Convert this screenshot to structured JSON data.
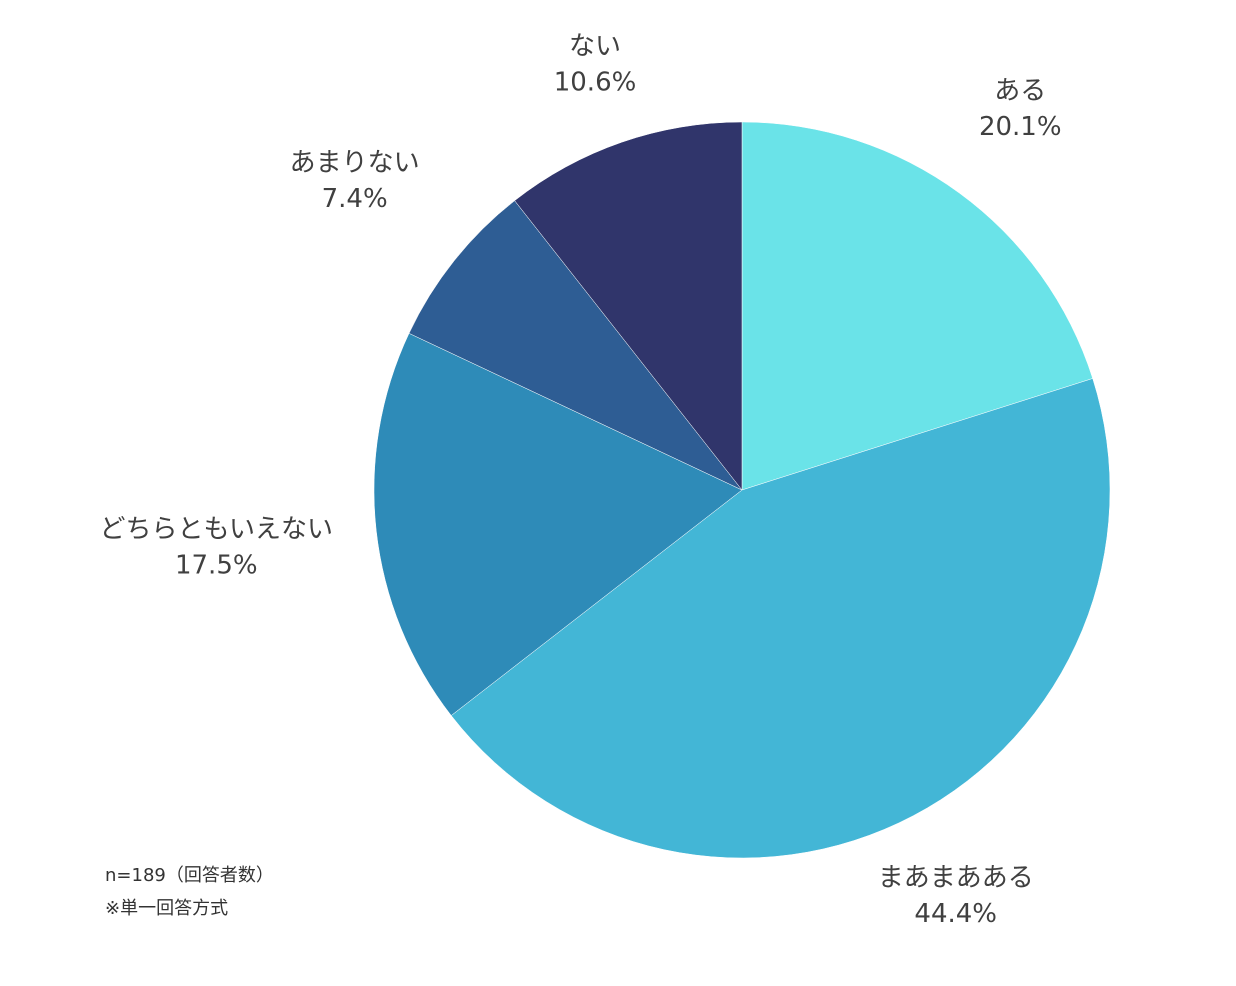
{
  "chart_data": {
    "type": "pie",
    "categories": [
      "ある",
      "まあまあある",
      "どちらともいえない",
      "あまりない",
      "ない"
    ],
    "values": [
      20.1,
      44.4,
      17.5,
      7.4,
      10.6
    ],
    "value_labels": [
      "20.1%",
      "44.4%",
      "17.5%",
      "7.4%",
      "10.6%"
    ],
    "colors": [
      "#6ae3e8",
      "#43b6d6",
      "#2e8bb8",
      "#2e5d94",
      "#30356b"
    ],
    "notes": [
      "n=189（回答者数）",
      "※単一回答方式"
    ]
  }
}
